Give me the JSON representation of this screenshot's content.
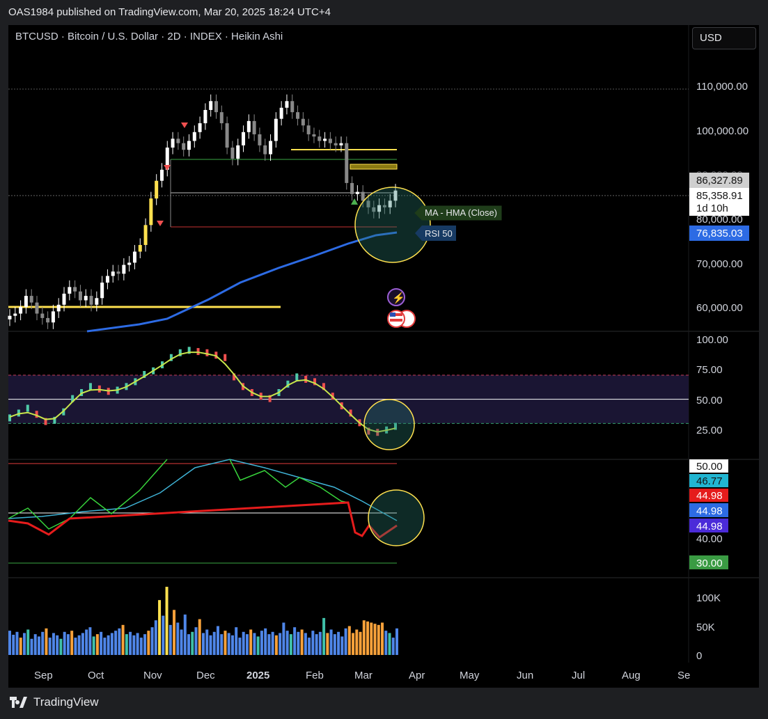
{
  "header": {
    "published": "OAS1984 published on TradingView.com, Mar 20, 2025 18:24 UTC+4",
    "symbol": "BTCUSD · Bitcoin / U.S. Dollar · 2D · INDEX · Heikin Ashi",
    "currency_button": "USD"
  },
  "brand": {
    "logo_icon": "tradingview-logo-icon",
    "name": "TradingView"
  },
  "colors": {
    "up": "#ffffff",
    "down": "#888888",
    "ma": "#2d6be4",
    "rsi_band": "#1a1533",
    "bull_ma": "#c8e64b",
    "bear_ma": "#f0643c",
    "vol_blue": "#4f86e8",
    "vol_orange": "#f7a13a",
    "vol_yellow": "#ffe14f"
  },
  "price_labels": {
    "last_close": "86,327.89",
    "current": "85,358.91",
    "countdown": "1d 10h",
    "ma_value": "76,835.03",
    "hidden_tick": "90,000.00"
  },
  "annotations": {
    "ma_tag": "MA - HMA (Close)",
    "rsi_tag": "RSI 50"
  },
  "chart_data": [
    {
      "type": "candlestick",
      "title": "BTCUSD · Bitcoin / U.S. Dollar · 2D · INDEX · Heikin Ashi",
      "x_ticks": [
        "Sep",
        "Oct",
        "Nov",
        "Dec",
        "2025",
        "Feb",
        "Mar",
        "Apr",
        "May",
        "Jun",
        "Jul",
        "Aug",
        "Se"
      ],
      "y_ticks": [
        "110,000.00",
        "100,000.00",
        "80,000.00",
        "70,000.00",
        "60,000.00"
      ],
      "ylim": [
        54500,
        117000
      ],
      "candles_close": [
        58000,
        58500,
        60000,
        62500,
        61000,
        58500,
        57500,
        56500,
        59000,
        60500,
        63000,
        64500,
        63500,
        61500,
        62500,
        60500,
        62000,
        65500,
        67000,
        68000,
        67500,
        69500,
        70000,
        72500,
        74000,
        78500,
        84500,
        88500,
        91000,
        96000,
        98000,
        97000,
        95500,
        97500,
        99500,
        101500,
        104500,
        106500,
        104000,
        101500,
        96000,
        93500,
        96500,
        99500,
        102000,
        99000,
        96500,
        94500,
        97500,
        102500,
        105000,
        106500,
        104000,
        102500,
        101000,
        99000,
        98500,
        97500,
        98000,
        97000,
        96500,
        97000,
        88000,
        85500,
        86000,
        84000,
        82500,
        81500,
        83000,
        82500,
        84000,
        86300
      ],
      "ma": {
        "name": "MA - HMA (Close)",
        "color": "#2d6be4",
        "last": 76835.03
      },
      "levels": [
        96000,
        94000,
        88000,
        81000,
        60000
      ]
    },
    {
      "type": "line",
      "name": "RSI",
      "y_ticks": [
        "100.00",
        "75.00",
        "50.00",
        "25.00"
      ],
      "ylim": [
        0,
        100
      ],
      "band": [
        30,
        70
      ],
      "values": [
        34,
        38,
        42,
        37,
        31,
        32,
        39,
        50,
        55,
        60,
        58,
        56,
        57,
        60,
        64,
        70,
        73,
        78,
        84,
        88,
        90,
        89,
        88,
        86,
        84,
        68,
        60,
        55,
        52,
        50,
        55,
        62,
        68,
        66,
        64,
        60,
        52,
        44,
        38,
        30,
        23,
        22,
        24,
        27
      ]
    },
    {
      "type": "line",
      "name": "RSI 50",
      "labels": [
        "50.00",
        "46.77",
        "44.98",
        "44.98",
        "44.98",
        "40.00",
        "30.00"
      ]
    },
    {
      "type": "bar",
      "name": "Volume",
      "y_ticks": [
        "100K",
        "50K",
        "0"
      ],
      "ylim": [
        0,
        115000
      ],
      "values": [
        42,
        35,
        40,
        30,
        38,
        44,
        28,
        36,
        32,
        40,
        46,
        30,
        38,
        34,
        28,
        40,
        36,
        42,
        30,
        34,
        38,
        44,
        48,
        32,
        36,
        40,
        30,
        34,
        38,
        42,
        46,
        52,
        36,
        40,
        34,
        38,
        30,
        36,
        42,
        48,
        60,
        95,
        68,
        118,
        52,
        78,
        56,
        44,
        70,
        36,
        40,
        48,
        62,
        38,
        44,
        34,
        40,
        50,
        36,
        42,
        38,
        34,
        48,
        30,
        40,
        36,
        44,
        38,
        32,
        42,
        46,
        36,
        40,
        34,
        38,
        56,
        42,
        36,
        48,
        40,
        44,
        38,
        30,
        42,
        36,
        40,
        64,
        38,
        44,
        36,
        40,
        32,
        46,
        50,
        38,
        44,
        40,
        60,
        58,
        56,
        54,
        52,
        56,
        42,
        38,
        30,
        46
      ]
    }
  ]
}
